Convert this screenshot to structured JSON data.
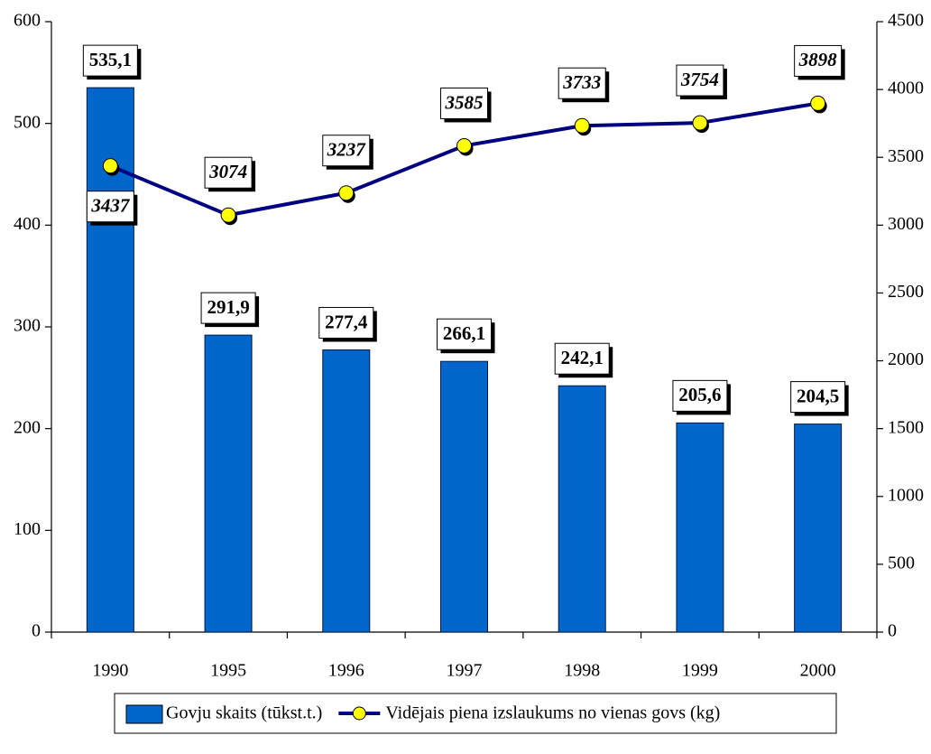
{
  "chart_data": {
    "type": "bar",
    "categories": [
      "1990",
      "1995",
      "1996",
      "1997",
      "1998",
      "1999",
      "2000"
    ],
    "series": [
      {
        "name": "Govju skaits (tūkst.t.)",
        "type": "bar",
        "color": "#0066cc",
        "values": [
          535.1,
          291.9,
          277.4,
          266.1,
          242.1,
          205.6,
          204.5
        ],
        "value_labels": [
          "535,1",
          "291,9",
          "277,4",
          "266,1",
          "242,1",
          "205,6",
          "204,5"
        ]
      },
      {
        "name": "Vidējais piena izslaukums no vienas govs (kg)",
        "type": "line",
        "color": "#000080",
        "marker_color": "#ffff00",
        "axis": "y2",
        "values": [
          3437,
          3074,
          3237,
          3585,
          3733,
          3754,
          3898
        ]
      }
    ],
    "ylim": [
      0,
      600
    ],
    "yticks": [
      0,
      100,
      200,
      300,
      400,
      500,
      600
    ],
    "y2lim": [
      0,
      4500
    ],
    "y2ticks": [
      0,
      500,
      1000,
      1500,
      2000,
      2500,
      3000,
      3500,
      4000,
      4500
    ],
    "legend": "bottom"
  }
}
